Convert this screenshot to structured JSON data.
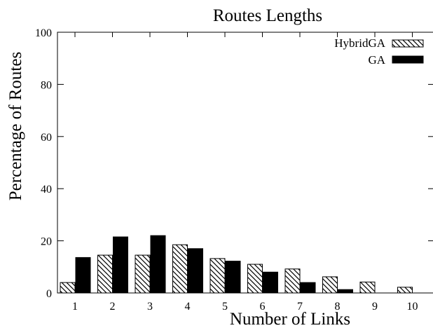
{
  "chart_data": {
    "type": "bar",
    "title": "Routes Lengths",
    "xlabel": "Number of Links",
    "ylabel": "Percentage of Routes",
    "categories": [
      "1",
      "2",
      "3",
      "4",
      "5",
      "6",
      "7",
      "8",
      "9",
      "10"
    ],
    "series": [
      {
        "name": "HybridGA",
        "pattern": "diagonal-hatch",
        "color": "#000000",
        "values": [
          4.0,
          14.5,
          14.5,
          18.5,
          13.2,
          11.0,
          9.2,
          6.2,
          4.2,
          2.2
        ]
      },
      {
        "name": "GA",
        "pattern": "solid",
        "color": "#000000",
        "values": [
          13.6,
          21.5,
          22.0,
          17.0,
          12.2,
          8.0,
          4.0,
          1.3,
          0.0,
          0.0
        ]
      }
    ],
    "ylim": [
      0,
      100
    ],
    "yticks": [
      0,
      20,
      40,
      60,
      80,
      100
    ],
    "grid": false,
    "legend_position": "top-right"
  }
}
